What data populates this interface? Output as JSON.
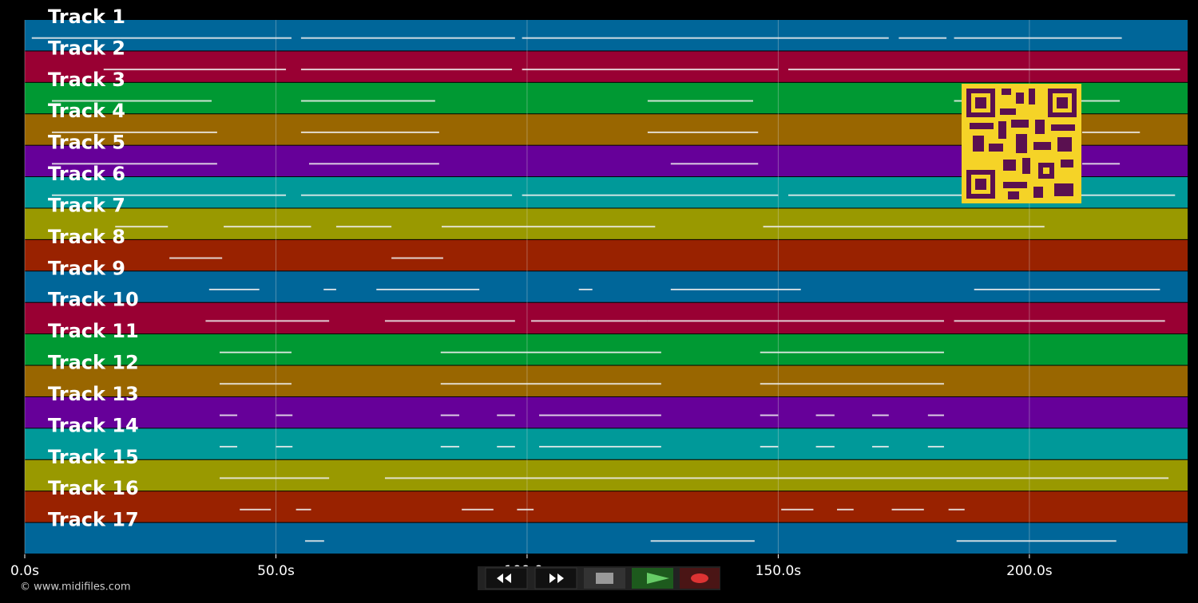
{
  "chart_data": {
    "type": "pianoroll",
    "xlim": [
      0,
      231.5
    ],
    "xticks": [
      {
        "value": 0,
        "label": "0.0s"
      },
      {
        "value": 50,
        "label": "50.0s"
      },
      {
        "value": 100,
        "label": "100.0s"
      },
      {
        "value": 150,
        "label": "150.0s"
      },
      {
        "value": 200,
        "label": "200.0s"
      }
    ],
    "grid": true,
    "series": [
      {
        "name": "Track 1",
        "color": "#006699",
        "values": [
          [
            1.4,
            53.1
          ],
          [
            55,
            97.6
          ],
          [
            99,
            172
          ],
          [
            174,
            183.5
          ],
          [
            185,
            218.4
          ]
        ]
      },
      {
        "name": "Track 2",
        "color": "#990033",
        "values": [
          [
            15.7,
            52
          ],
          [
            55,
            97
          ],
          [
            99,
            150
          ],
          [
            152,
            230
          ]
        ]
      },
      {
        "name": "Track 3",
        "color": "#009933",
        "values": [
          [
            5.4,
            37.2
          ],
          [
            55,
            81.7
          ],
          [
            124,
            145
          ],
          [
            185,
            218
          ]
        ]
      },
      {
        "name": "Track 4",
        "color": "#996600",
        "values": [
          [
            5.4,
            38.3
          ],
          [
            55,
            82.5
          ],
          [
            124,
            146
          ],
          [
            210.5,
            222
          ]
        ]
      },
      {
        "name": "Track 5",
        "color": "#660099",
        "values": [
          [
            5.4,
            38.3
          ],
          [
            56.6,
            82.5
          ],
          [
            128.6,
            146
          ],
          [
            210.5,
            218
          ]
        ]
      },
      {
        "name": "Track 6",
        "color": "#009999",
        "values": [
          [
            5.4,
            52
          ],
          [
            55,
            97
          ],
          [
            99,
            150
          ],
          [
            152,
            190
          ],
          [
            209,
            229
          ]
        ]
      },
      {
        "name": "Track 7",
        "color": "#999900",
        "values": [
          [
            18,
            28.5
          ],
          [
            39.6,
            57
          ],
          [
            62,
            73
          ],
          [
            83,
            125.5
          ],
          [
            147,
            203
          ]
        ]
      },
      {
        "name": "Track 8",
        "color": "#992200",
        "values": [
          [
            28.8,
            39.3
          ],
          [
            73,
            83.3
          ]
        ]
      },
      {
        "name": "Track 9",
        "color": "#006699",
        "values": [
          [
            36.7,
            46.7
          ],
          [
            59.5,
            62
          ],
          [
            70,
            90.5
          ],
          [
            110.3,
            113
          ],
          [
            128.6,
            154.5
          ],
          [
            189,
            226
          ]
        ]
      },
      {
        "name": "Track 10",
        "color": "#990033",
        "values": [
          [
            36,
            60.6
          ],
          [
            71.7,
            97.6
          ],
          [
            100.8,
            124
          ],
          [
            124,
            183
          ],
          [
            185,
            227
          ]
        ]
      },
      {
        "name": "Track 11",
        "color": "#009933",
        "values": [
          [
            38.8,
            53.1
          ],
          [
            82.8,
            126.7
          ],
          [
            146.4,
            183
          ]
        ]
      },
      {
        "name": "Track 12",
        "color": "#996600",
        "values": [
          [
            38.8,
            53.1
          ],
          [
            82.8,
            126.7
          ],
          [
            146.4,
            183
          ]
        ]
      },
      {
        "name": "Track 13",
        "color": "#660099",
        "values": [
          [
            38.8,
            42.3
          ],
          [
            50,
            53.3
          ],
          [
            82.8,
            86.5
          ],
          [
            94,
            97.6
          ],
          [
            102.4,
            126.7
          ],
          [
            146.4,
            150
          ],
          [
            157.5,
            161.2
          ],
          [
            168.7,
            172
          ],
          [
            179.8,
            183
          ]
        ]
      },
      {
        "name": "Track 14",
        "color": "#009999",
        "values": [
          [
            38.8,
            42.3
          ],
          [
            50,
            53.3
          ],
          [
            82.8,
            86.5
          ],
          [
            94,
            97.6
          ],
          [
            102.4,
            126.7
          ],
          [
            146.4,
            150
          ],
          [
            157.5,
            161.2
          ],
          [
            168.7,
            172
          ],
          [
            179.8,
            183
          ]
        ]
      },
      {
        "name": "Track 15",
        "color": "#999900",
        "values": [
          [
            38.8,
            60.6
          ],
          [
            71.7,
            227.7
          ]
        ]
      },
      {
        "name": "Track 16",
        "color": "#992200",
        "values": [
          [
            42.8,
            49
          ],
          [
            54,
            57
          ],
          [
            87,
            93.3
          ],
          [
            98,
            101.3
          ],
          [
            150.6,
            157
          ],
          [
            161.7,
            165
          ],
          [
            172.6,
            179
          ],
          [
            183.9,
            187.1
          ]
        ]
      },
      {
        "name": "Track 17",
        "color": "#006699",
        "values": [
          [
            55.8,
            59.6
          ],
          [
            124.6,
            145.3
          ],
          [
            185.5,
            217.3
          ]
        ]
      }
    ],
    "footer": "© www.midifiles.com"
  }
}
